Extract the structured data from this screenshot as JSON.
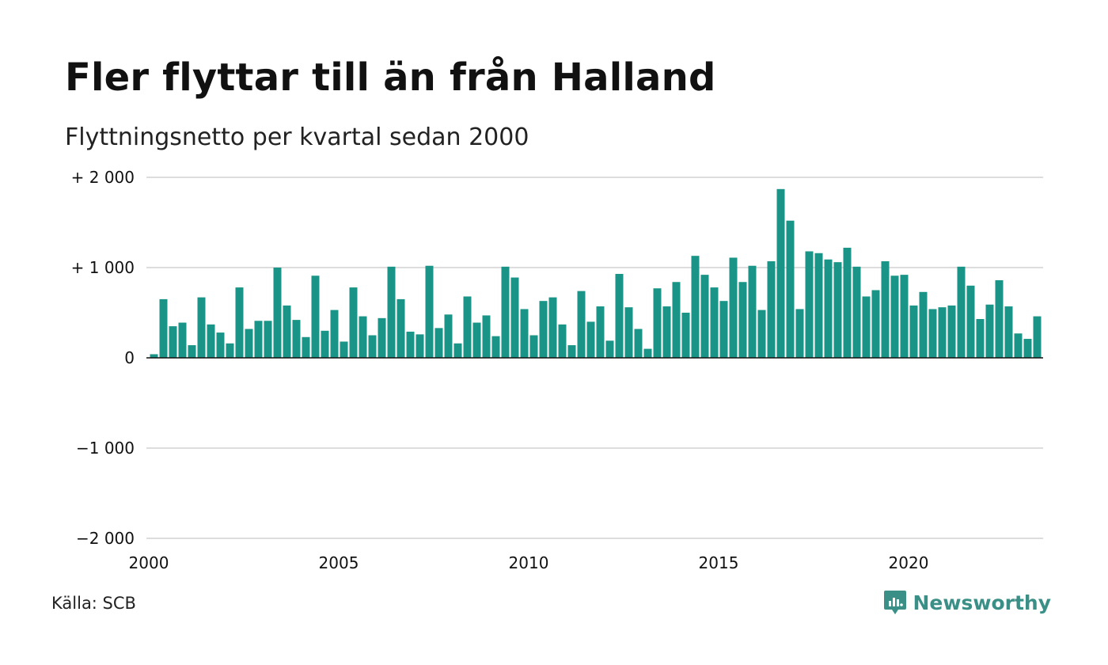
{
  "title": "Fler flyttar till än från Halland",
  "subtitle": "Flyttningsnetto per kvartal sedan 2000",
  "source": "Källa: SCB",
  "brand": {
    "name": "Newsworthy",
    "color": "#3a8f86",
    "icon": "newsworthy-logo-icon"
  },
  "colors": {
    "bar": "#1a9486",
    "grid": "#dddddd",
    "zero_line": "#111111"
  },
  "chart_data": {
    "type": "bar",
    "title": "Fler flyttar till än från Halland",
    "subtitle": "Flyttningsnetto per kvartal sedan 2000",
    "ylim": [
      -2000,
      2000
    ],
    "yticks": [
      2000,
      1000,
      0,
      -1000,
      -2000
    ],
    "ytick_labels": [
      "+ 2 000",
      "+ 1 000",
      "0",
      "−1 000",
      "−2 000"
    ],
    "xticks": [
      2000,
      2005,
      2010,
      2015,
      2020
    ],
    "xtick_labels": [
      "2000",
      "2005",
      "2010",
      "2015",
      "2020"
    ],
    "grid": true,
    "start_year": 2000,
    "categories": [
      "2000K1",
      "2000K2",
      "2000K3",
      "2000K4",
      "2001K1",
      "2001K2",
      "2001K3",
      "2001K4",
      "2002K1",
      "2002K2",
      "2002K3",
      "2002K4",
      "2003K1",
      "2003K2",
      "2003K3",
      "2003K4",
      "2004K1",
      "2004K2",
      "2004K3",
      "2004K4",
      "2005K1",
      "2005K2",
      "2005K3",
      "2005K4",
      "2006K1",
      "2006K2",
      "2006K3",
      "2006K4",
      "2007K1",
      "2007K2",
      "2007K3",
      "2007K4",
      "2008K1",
      "2008K2",
      "2008K3",
      "2008K4",
      "2009K1",
      "2009K2",
      "2009K3",
      "2009K4",
      "2010K1",
      "2010K2",
      "2010K3",
      "2010K4",
      "2011K1",
      "2011K2",
      "2011K3",
      "2011K4",
      "2012K1",
      "2012K2",
      "2012K3",
      "2012K4",
      "2013K1",
      "2013K2",
      "2013K3",
      "2013K4",
      "2014K1",
      "2014K2",
      "2014K3",
      "2014K4",
      "2015K1",
      "2015K2",
      "2015K3",
      "2015K4",
      "2016K1",
      "2016K2",
      "2016K3",
      "2016K4",
      "2017K1",
      "2017K2",
      "2017K3",
      "2017K4",
      "2018K1",
      "2018K2",
      "2018K3",
      "2018K4",
      "2019K1",
      "2019K2",
      "2019K3",
      "2019K4",
      "2020K1",
      "2020K2",
      "2020K3",
      "2020K4",
      "2021K1",
      "2021K2",
      "2021K3",
      "2021K4",
      "2022K1",
      "2022K2",
      "2022K3",
      "2022K4",
      "2023K1",
      "2023K2"
    ],
    "values": [
      40,
      650,
      350,
      390,
      140,
      670,
      370,
      280,
      160,
      780,
      320,
      410,
      410,
      1000,
      580,
      420,
      230,
      910,
      300,
      530,
      180,
      780,
      460,
      250,
      440,
      1010,
      650,
      290,
      260,
      1020,
      330,
      480,
      160,
      680,
      390,
      470,
      240,
      1010,
      890,
      540,
      250,
      630,
      670,
      370,
      140,
      740,
      400,
      570,
      190,
      930,
      560,
      320,
      100,
      770,
      570,
      840,
      500,
      1130,
      920,
      780,
      630,
      1110,
      840,
      1020,
      530,
      1070,
      1870,
      1520,
      540,
      1180,
      1160,
      1090,
      1060,
      1220,
      1010,
      680,
      750,
      1070,
      910,
      920,
      580,
      730,
      540,
      560,
      580,
      1010,
      800,
      430,
      590,
      860,
      570,
      270,
      210,
      460
    ]
  }
}
